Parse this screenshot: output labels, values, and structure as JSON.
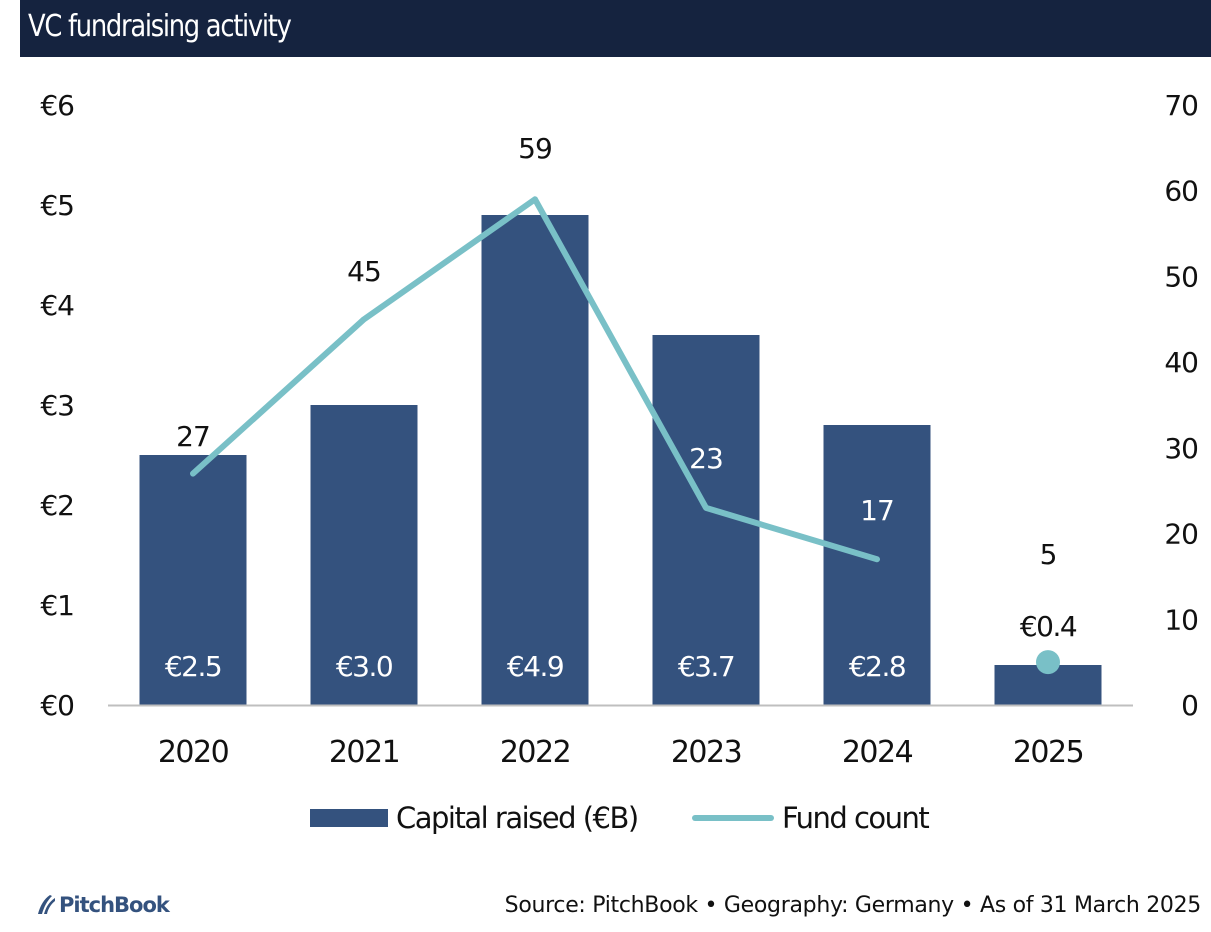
{
  "header": {
    "title": "VC fundraising activity"
  },
  "colors": {
    "title_bg": "#15233f",
    "bar": "#34527e",
    "line": "#79c0c7",
    "axis": "#bfbfbf",
    "brand": "#34527e"
  },
  "chart_data": {
    "type": "bar+line",
    "title": "VC fundraising activity",
    "categories": [
      "2020",
      "2021",
      "2022",
      "2023",
      "2024",
      "2025"
    ],
    "series": [
      {
        "name": "Capital raised (€B)",
        "type": "bar",
        "axis": "left",
        "values": [
          2.5,
          3.0,
          4.9,
          3.7,
          2.8,
          0.4
        ],
        "labels": [
          "€2.5",
          "€3.0",
          "€4.9",
          "€3.7",
          "€2.8",
          "€0.4"
        ]
      },
      {
        "name": "Fund count",
        "type": "line",
        "axis": "right",
        "values": [
          27,
          45,
          59,
          23,
          17,
          5
        ],
        "labels": [
          "27",
          "45",
          "59",
          "23",
          "17",
          "5"
        ],
        "note": "2025 shown as a single marker, not connected to the line"
      }
    ],
    "left_axis": {
      "ylim": [
        0,
        6
      ],
      "ticks": [
        "€0",
        "€1",
        "€2",
        "€3",
        "€4",
        "€5",
        "€6"
      ]
    },
    "right_axis": {
      "ylim": [
        0,
        70
      ],
      "ticks": [
        "0",
        "10",
        "20",
        "30",
        "40",
        "50",
        "60",
        "70"
      ]
    },
    "xlabel": "",
    "ylabel": "",
    "grid": false,
    "legend": {
      "placement": "bottom",
      "entries": [
        "Capital raised (€B)",
        "Fund count"
      ]
    }
  },
  "footer": {
    "brand": "PitchBook",
    "source": "Source: PitchBook • Geography: Germany • As of 31 March 2025"
  }
}
